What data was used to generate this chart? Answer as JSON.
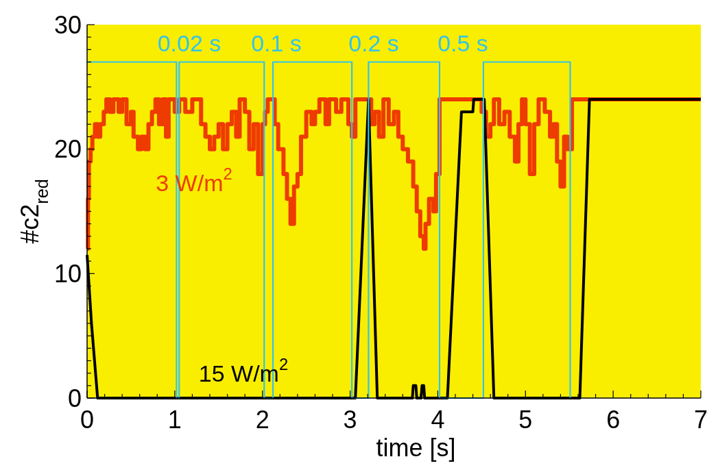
{
  "chart_data": {
    "type": "line",
    "xlabel": "time [s]",
    "ylabel": "#c2$_{red}$",
    "xlim": [
      0,
      7
    ],
    "ylim": [
      0,
      30
    ],
    "xticks": [
      0,
      {
        "value": 0.2,
        "label": null
      },
      {
        "value": 0.4,
        "label": null
      },
      {
        "value": 0.6,
        "label": null
      },
      {
        "value": 0.8,
        "label": null
      },
      1,
      {
        "value": 1.2,
        "label": null
      },
      {
        "value": 1.4,
        "label": null
      },
      {
        "value": 1.6,
        "label": null
      },
      {
        "value": 1.8,
        "label": null
      },
      2,
      {
        "value": 2.2,
        "label": null
      },
      {
        "value": 2.4,
        "label": null
      },
      {
        "value": 2.6,
        "label": null
      },
      {
        "value": 2.8,
        "label": null
      },
      3,
      {
        "value": 3.2,
        "label": null
      },
      {
        "value": 3.4,
        "label": null
      },
      {
        "value": 3.6,
        "label": null
      },
      {
        "value": 3.8,
        "label": null
      },
      4,
      {
        "value": 4.2,
        "label": null
      },
      {
        "value": 4.4,
        "label": null
      },
      {
        "value": 4.6,
        "label": null
      },
      {
        "value": 4.8,
        "label": null
      },
      5,
      {
        "value": 5.2,
        "label": null
      },
      {
        "value": 5.4,
        "label": null
      },
      {
        "value": 5.6,
        "label": null
      },
      {
        "value": 5.8,
        "label": null
      },
      6,
      {
        "value": 6.2,
        "label": null
      },
      {
        "value": 6.4,
        "label": null
      },
      {
        "value": 6.6,
        "label": null
      },
      {
        "value": 6.8,
        "label": null
      },
      7
    ],
    "yticks": [
      0,
      {
        "value": 1,
        "label": null
      },
      {
        "value": 2,
        "label": null
      },
      {
        "value": 3,
        "label": null
      },
      {
        "value": 4,
        "label": null
      },
      {
        "value": 5,
        "label": null
      },
      {
        "value": 6,
        "label": null
      },
      {
        "value": 7,
        "label": null
      },
      {
        "value": 8,
        "label": null
      },
      {
        "value": 9,
        "label": null
      },
      10,
      {
        "value": 11,
        "label": null
      },
      {
        "value": 12,
        "label": null
      },
      {
        "value": 13,
        "label": null
      },
      {
        "value": 14,
        "label": null
      },
      {
        "value": 15,
        "label": null
      },
      {
        "value": 16,
        "label": null
      },
      {
        "value": 17,
        "label": null
      },
      {
        "value": 18,
        "label": null
      },
      {
        "value": 19,
        "label": null
      },
      20,
      {
        "value": 21,
        "label": null
      },
      {
        "value": 22,
        "label": null
      },
      {
        "value": 23,
        "label": null
      },
      {
        "value": 24,
        "label": null
      },
      {
        "value": 25,
        "label": null
      },
      {
        "value": 26,
        "label": null
      },
      {
        "value": 27,
        "label": null
      },
      {
        "value": 28,
        "label": null
      },
      {
        "value": 29,
        "label": null
      },
      30
    ],
    "grid": false,
    "marker": "none",
    "series": [
      {
        "type": "step",
        "name": "3 W/m$^{2}$",
        "color": "#ee3b00",
        "x": [
          0,
          0.01,
          0.02,
          0.04,
          0.06,
          0.09,
          0.12,
          0.15,
          0.19,
          0.22,
          0.26,
          0.3,
          0.36,
          0.4,
          0.45,
          0.5,
          0.53,
          0.58,
          0.62,
          0.66,
          0.7,
          0.74,
          0.78,
          0.82,
          0.86,
          0.9,
          0.93,
          1.0,
          1.05,
          1.12,
          1.2,
          1.3,
          1.35,
          1.4,
          1.45,
          1.5,
          1.55,
          1.6,
          1.65,
          1.7,
          1.74,
          1.8,
          1.85,
          1.9,
          1.95,
          2.0,
          2.03,
          2.06,
          2.14,
          2.18,
          2.24,
          2.28,
          2.32,
          2.36,
          2.4,
          2.44,
          2.5,
          2.56,
          2.6,
          2.65,
          2.72,
          2.76,
          2.84,
          2.9,
          2.98,
          3.02,
          3.06,
          3.24,
          3.28,
          3.33,
          3.38,
          3.44,
          3.5,
          3.55,
          3.6,
          3.66,
          3.72,
          3.76,
          3.8,
          3.84,
          3.86,
          3.9,
          3.95,
          3.98,
          4.02,
          4.5,
          4.55,
          4.6,
          4.64,
          4.7,
          4.76,
          4.82,
          4.88,
          4.92,
          4.96,
          5.0,
          5.05,
          5.1,
          5.15,
          5.22,
          5.28,
          5.32,
          5.36,
          5.4,
          5.44,
          5.48,
          5.53,
          7
        ],
        "values": [
          12,
          16,
          19,
          20,
          21,
          22,
          21,
          22,
          23,
          24,
          23,
          24,
          23,
          24,
          22,
          23,
          21,
          20,
          21,
          20,
          22,
          23,
          24,
          22,
          24,
          21,
          24,
          23,
          24,
          23,
          24,
          22,
          21,
          20,
          21,
          22,
          20,
          22,
          23,
          21,
          24,
          23,
          20,
          22,
          18,
          22,
          23,
          24,
          22,
          20,
          18,
          16,
          14,
          17,
          18,
          21,
          23,
          22,
          23,
          24,
          22,
          24,
          23,
          24,
          22,
          21,
          24,
          22,
          23,
          21,
          24,
          22,
          23,
          21,
          20,
          19,
          17,
          15,
          13,
          12,
          14,
          16,
          15,
          18,
          24,
          23,
          21,
          22,
          24,
          22,
          23,
          21,
          19,
          22,
          24,
          22,
          18,
          22,
          24,
          23,
          21,
          22,
          19,
          17,
          21,
          20,
          24,
          24
        ]
      },
      {
        "name": "15 W/m$^{2}$",
        "color": "#000000",
        "x": [
          0,
          0.05,
          0.12,
          3.06,
          3.21,
          3.31,
          3.71,
          3.72,
          3.75,
          3.76,
          3.81,
          3.82,
          3.84,
          3.85,
          4.11,
          4.27,
          4.4,
          4.41,
          4.53,
          4.64,
          5.62,
          5.73,
          7
        ],
        "values": [
          11.5,
          6,
          0,
          0,
          24,
          0,
          0,
          1,
          1,
          0,
          0,
          1,
          1,
          0,
          0,
          23,
          23,
          24,
          24,
          0,
          0,
          24,
          24
        ]
      },
      {
        "type": "step",
        "color": "#33c4e8",
        "x": [
          0,
          1.02,
          1.05,
          2.02,
          2.12,
          3.02,
          3.21,
          4.02,
          4.52,
          5.51
        ],
        "values": [
          27,
          0,
          27,
          0,
          27,
          0,
          27,
          0,
          27,
          0
        ]
      }
    ],
    "annotations": [
      "0.02 s",
      "0.1 s",
      "0.2 s",
      "0.5 s"
    ]
  }
}
